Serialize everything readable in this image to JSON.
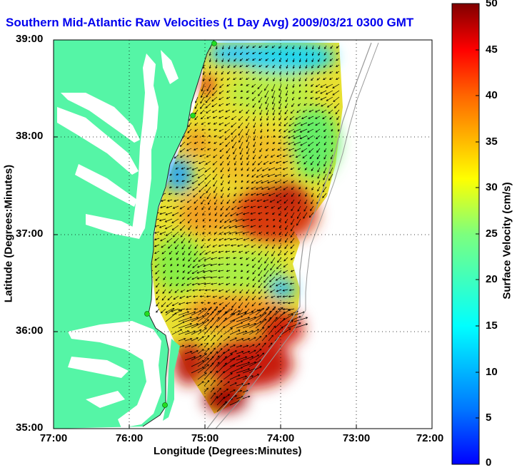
{
  "chart_data": {
    "type": "heatmap",
    "title": "Southern Mid-Atlantic Raw Velocities (1 Day Avg) 2009/03/21 0300 GMT",
    "xlabel": "Longitude (Degrees:Minutes)",
    "ylabel": "Latitude (Degrees:Minutes)",
    "colorbar_label": "Surface Velocity (cm/s)",
    "x_ticks": [
      "77:00",
      "76:00",
      "75:00",
      "74:00",
      "73:00",
      "72:00"
    ],
    "y_ticks": [
      "39:00",
      "38:00",
      "37:00",
      "36:00",
      "35:00"
    ],
    "xlim": [
      -77,
      -72
    ],
    "ylim": [
      35,
      39
    ],
    "colorbar_ticks": [
      "50",
      "45",
      "40",
      "35",
      "30",
      "25",
      "20",
      "15",
      "10",
      "5",
      "0"
    ],
    "colorbar_range": [
      0,
      50
    ],
    "grid": true,
    "colors": {
      "land": "#55f5a6",
      "water": "#ffffff",
      "title": "#0000ee",
      "station": "#22dd22"
    },
    "velocity_field": [
      {
        "region": "north nearshore (38.7–39.0N)",
        "speed": 10
      },
      {
        "region": "central shelf (37.0–37.8N)",
        "speed": 28
      },
      {
        "region": "offshore core (37.0–37.3N, 74.0W)",
        "speed": 42
      },
      {
        "region": "mid shelf (36.5N)",
        "speed": 20
      },
      {
        "region": "southern jet near Cape Hatteras (35.3–36.2N)",
        "speed": 48
      }
    ],
    "stations": 4
  }
}
